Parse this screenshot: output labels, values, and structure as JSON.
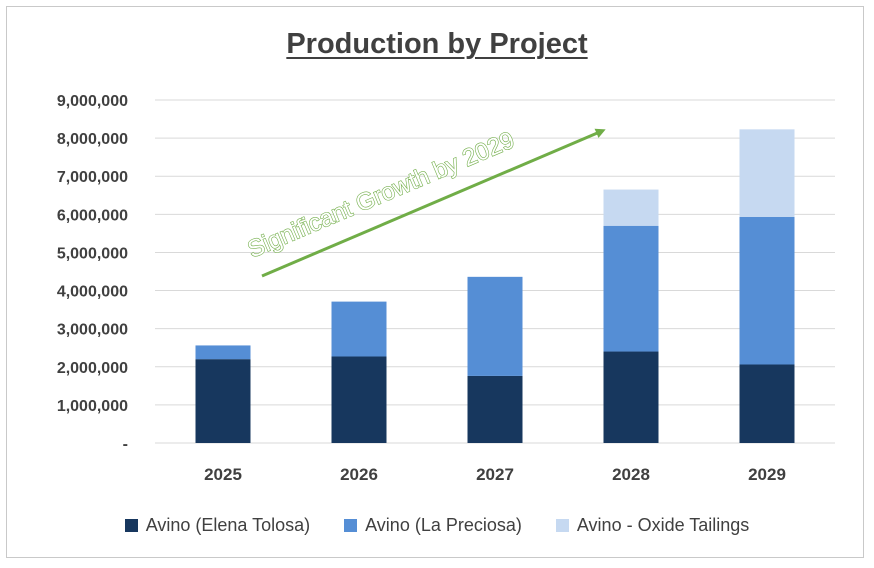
{
  "chart_data": {
    "type": "bar",
    "stacked": true,
    "title": "Production by Project",
    "categories": [
      "2025",
      "2026",
      "2027",
      "2028",
      "2029"
    ],
    "series": [
      {
        "name": "Avino (Elena Tolosa)",
        "color": "#17375e",
        "values": [
          2200000,
          2270000,
          1760000,
          2400000,
          2060000
        ]
      },
      {
        "name": "Avino (La Preciosa)",
        "color": "#558ed5",
        "values": [
          360000,
          1440000,
          2600000,
          3300000,
          3870000
        ]
      },
      {
        "name": "Avino - Oxide Tailings",
        "color": "#c6d9f1",
        "values": [
          0,
          0,
          0,
          950000,
          2300000
        ]
      }
    ],
    "ylim": [
      0,
      9000000
    ],
    "yticks": [
      {
        "value": 0,
        "label": "-"
      },
      {
        "value": 1000000,
        "label": "1,000,000"
      },
      {
        "value": 2000000,
        "label": "2,000,000"
      },
      {
        "value": 3000000,
        "label": "3,000,000"
      },
      {
        "value": 4000000,
        "label": "4,000,000"
      },
      {
        "value": 5000000,
        "label": "5,000,000"
      },
      {
        "value": 6000000,
        "label": "6,000,000"
      },
      {
        "value": 7000000,
        "label": "7,000,000"
      },
      {
        "value": 8000000,
        "label": "8,000,000"
      },
      {
        "value": 9000000,
        "label": "9,000,000"
      }
    ],
    "grid": true,
    "legend": "bottom",
    "annotation": {
      "text": "Significant Growth by 2029",
      "color": "#70ad47"
    }
  }
}
